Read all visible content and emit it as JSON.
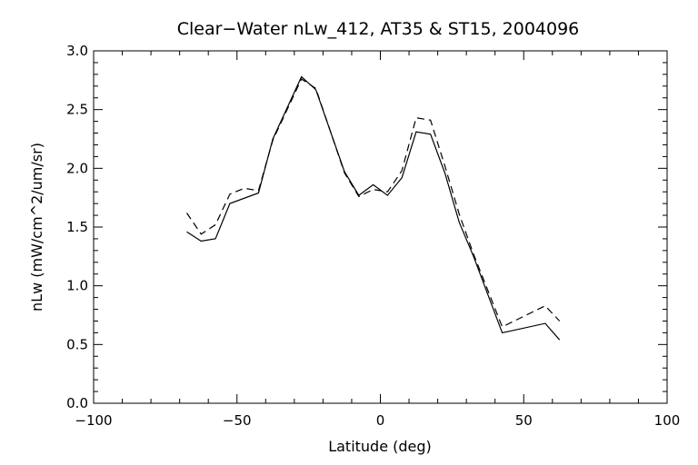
{
  "chart_data": {
    "type": "line",
    "title": "Clear−Water nLw_412, AT35 & ST15, 2004096",
    "xlabel": "Latitude (deg)",
    "ylabel": "nLw (mW/cm^2/um/sr)",
    "xlim": [
      -100,
      100
    ],
    "ylim": [
      0.0,
      3.0
    ],
    "xticks": [
      -100,
      -50,
      0,
      50,
      100
    ],
    "xtick_labels": [
      "−100",
      "−50",
      "0",
      "50",
      "100"
    ],
    "yticks": [
      0.0,
      0.5,
      1.0,
      1.5,
      2.0,
      2.5,
      3.0
    ],
    "ytick_labels": [
      "0.0",
      "0.5",
      "1.0",
      "1.5",
      "2.0",
      "2.5",
      "3.0"
    ],
    "grid": false,
    "legend": "none",
    "series": [
      {
        "style": "solid",
        "x": [
          -67.5,
          -62.5,
          -57.5,
          -52.5,
          -42.5,
          -37.5,
          -27.5,
          -22.5,
          -12.5,
          -7.5,
          -2.5,
          2.5,
          7.5,
          12.5,
          17.5,
          22.5,
          27.5,
          32.5,
          42.5,
          57.5,
          62.5
        ],
        "y": [
          1.46,
          1.38,
          1.4,
          1.7,
          1.79,
          2.25,
          2.78,
          2.67,
          1.97,
          1.77,
          1.86,
          1.77,
          1.92,
          2.31,
          2.29,
          1.96,
          1.54,
          1.25,
          0.6,
          0.68,
          0.54
        ]
      },
      {
        "style": "dashed",
        "x": [
          -67.5,
          -62.5,
          -57.5,
          -52.5,
          -47.5,
          -42.5,
          -37.5,
          -27.5,
          -22.5,
          -12.5,
          -7.5,
          -2.5,
          2.5,
          7.5,
          12.5,
          17.5,
          22.5,
          27.5,
          32.5,
          42.5,
          57.5,
          62.5
        ],
        "y": [
          1.62,
          1.44,
          1.52,
          1.78,
          1.83,
          1.81,
          2.24,
          2.76,
          2.68,
          1.96,
          1.76,
          1.82,
          1.8,
          1.98,
          2.43,
          2.41,
          2.02,
          1.61,
          1.27,
          0.65,
          0.83,
          0.7
        ]
      }
    ]
  }
}
